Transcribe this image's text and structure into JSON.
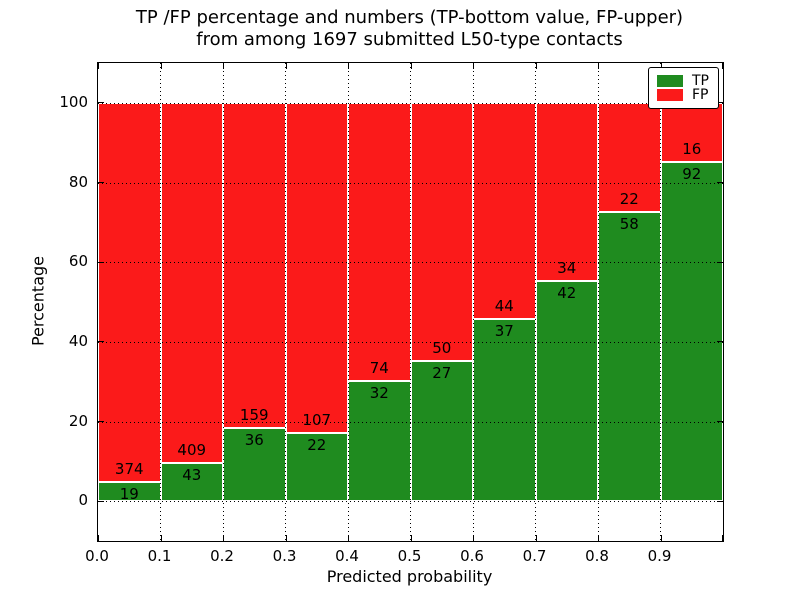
{
  "title": {
    "line1": "TP /FP percentage and numbers (TP-bottom value, FP-upper)",
    "line2": "from among 1697 submitted L50-type contacts"
  },
  "axes": {
    "xlabel": "Predicted probability",
    "ylabel": "Percentage",
    "x_tick_labels": [
      "0.0",
      "0.1",
      "0.2",
      "0.3",
      "0.4",
      "0.5",
      "0.6",
      "0.7",
      "0.8",
      "0.9"
    ],
    "y_tick_labels": [
      "0",
      "20",
      "40",
      "60",
      "80",
      "100"
    ],
    "y_tick_values": [
      0,
      20,
      40,
      60,
      80,
      100
    ]
  },
  "legend": {
    "items": [
      {
        "label": "TP",
        "color": "#1f8b1f"
      },
      {
        "label": "FP",
        "color": "#fb1a1a"
      }
    ]
  },
  "colors": {
    "tp_green": "#1f8b1f",
    "fp_red": "#fb1a1a",
    "grid": "#000000",
    "bar_edge": "#ffffff"
  },
  "chart_data": {
    "type": "bar",
    "stacked": true,
    "title": "TP /FP percentage and numbers (TP-bottom value, FP-upper) from among 1697 submitted L50-type contacts",
    "xlabel": "Predicted probability",
    "ylabel": "Percentage",
    "xlim": [
      0.0,
      1.0
    ],
    "ylim": [
      -10,
      110
    ],
    "grid": "dotted, horizontal at y ticks and vertical at x ticks, drawn over bars",
    "legend_position": "upper right",
    "bin_width": 0.1,
    "bin_starts": [
      0.0,
      0.1,
      0.2,
      0.3,
      0.4,
      0.5,
      0.6,
      0.7,
      0.8,
      0.9
    ],
    "categories": [
      "0.0-0.1",
      "0.1-0.2",
      "0.2-0.3",
      "0.3-0.4",
      "0.4-0.5",
      "0.5-0.6",
      "0.6-0.7",
      "0.7-0.8",
      "0.8-0.9",
      "0.9-1.0"
    ],
    "series": [
      {
        "name": "TP",
        "color": "#1f8b1f",
        "values": [
          19,
          43,
          36,
          22,
          32,
          27,
          37,
          42,
          58,
          92
        ]
      },
      {
        "name": "FP",
        "color": "#fb1a1a",
        "values": [
          374,
          409,
          159,
          107,
          74,
          50,
          44,
          34,
          22,
          16
        ]
      }
    ],
    "total_contacts": 1697,
    "note": "Each bar is normalized to 100%; green bottom segment height = TP/(TP+FP)*100, red upper segment = FP/(TP+FP)*100. Counts are printed adjacent to the TP/FP boundary (FP above, TP below)."
  }
}
